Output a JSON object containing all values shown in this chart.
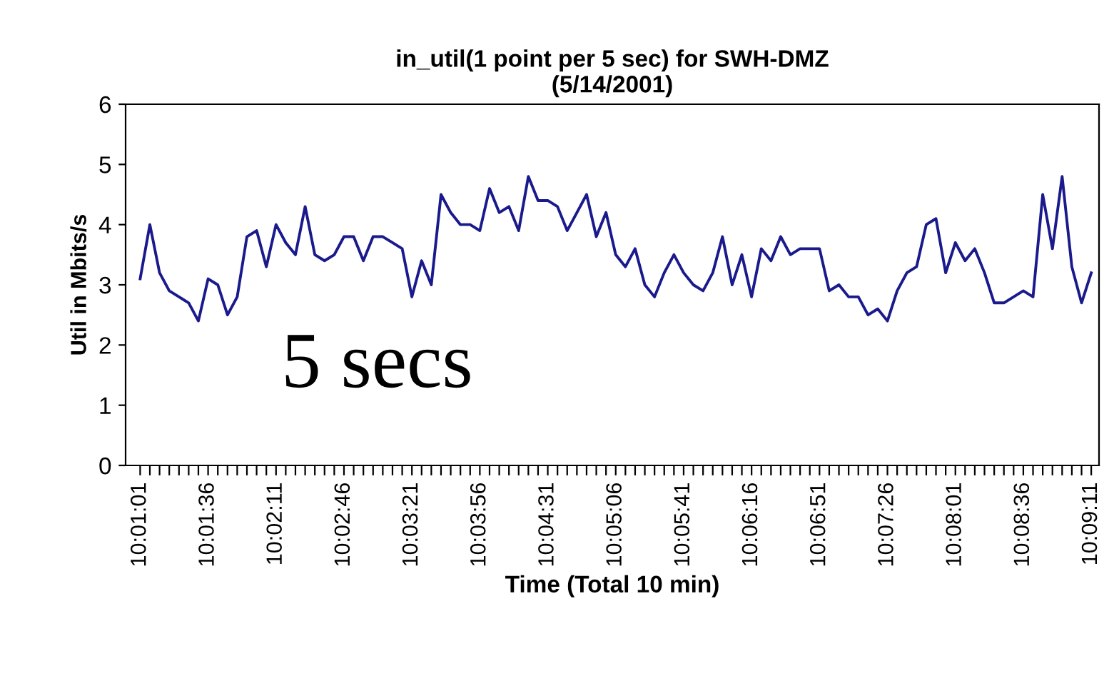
{
  "chart_data": {
    "type": "line",
    "title": "in_util(1 point per 5 sec) for SWH-DMZ\n(5/14/2001)",
    "xlabel": "Time (Total 10 min)",
    "ylabel": "Util in Mbits/s",
    "categories": [
      "10:01:01",
      null,
      null,
      null,
      null,
      null,
      null,
      "10:01:36",
      null,
      null,
      null,
      null,
      null,
      null,
      "10:02:11",
      null,
      null,
      null,
      null,
      null,
      null,
      "10:02:46",
      null,
      null,
      null,
      null,
      null,
      null,
      "10:03:21",
      null,
      null,
      null,
      null,
      null,
      null,
      "10:03:56",
      null,
      null,
      null,
      null,
      null,
      null,
      "10:04:31",
      null,
      null,
      null,
      null,
      null,
      null,
      "10:05:06",
      null,
      null,
      null,
      null,
      null,
      null,
      "10:05:41",
      null,
      null,
      null,
      null,
      null,
      null,
      "10:06:16",
      null,
      null,
      null,
      null,
      null,
      null,
      "10:06:51",
      null,
      null,
      null,
      null,
      null,
      null,
      "10:07:26",
      null,
      null,
      null,
      null,
      null,
      null,
      "10:08:01",
      null,
      null,
      null,
      null,
      null,
      null,
      "10:08:36",
      null,
      null,
      null,
      null,
      null,
      null,
      "10:09:11"
    ],
    "series": [
      {
        "color": "#1a1a8c",
        "values": [
          3.1,
          4.0,
          3.2,
          2.9,
          2.8,
          2.7,
          2.4,
          3.1,
          3.0,
          2.5,
          2.8,
          3.8,
          3.9,
          3.3,
          4.0,
          3.7,
          3.5,
          4.3,
          3.5,
          3.4,
          3.5,
          3.8,
          3.8,
          3.4,
          3.8,
          3.8,
          3.7,
          3.6,
          2.8,
          3.4,
          3.0,
          4.5,
          4.2,
          4.0,
          4.0,
          3.9,
          4.6,
          4.2,
          4.3,
          3.9,
          4.8,
          4.4,
          4.4,
          4.3,
          3.9,
          4.2,
          4.5,
          3.8,
          4.2,
          3.5,
          3.3,
          3.6,
          3.0,
          2.8,
          3.2,
          3.5,
          3.2,
          3.0,
          2.9,
          3.2,
          3.8,
          3.0,
          3.5,
          2.8,
          3.6,
          3.4,
          3.8,
          3.5,
          3.6,
          3.6,
          3.6,
          2.9,
          3.0,
          2.8,
          2.8,
          2.5,
          2.6,
          2.4,
          2.9,
          3.2,
          3.3,
          4.0,
          4.1,
          3.2,
          3.7,
          3.4,
          3.6,
          3.2,
          2.7,
          2.7,
          2.8,
          2.9,
          2.8,
          4.5,
          3.6,
          4.8,
          3.3,
          2.7,
          3.2
        ]
      }
    ],
    "ylim": [
      0,
      6
    ],
    "yticks": [
      0,
      1,
      2,
      3,
      4,
      5,
      6
    ],
    "grid": false,
    "legend": false,
    "marker": "none",
    "line_style": "solid",
    "annotations": [
      "5 secs"
    ]
  }
}
